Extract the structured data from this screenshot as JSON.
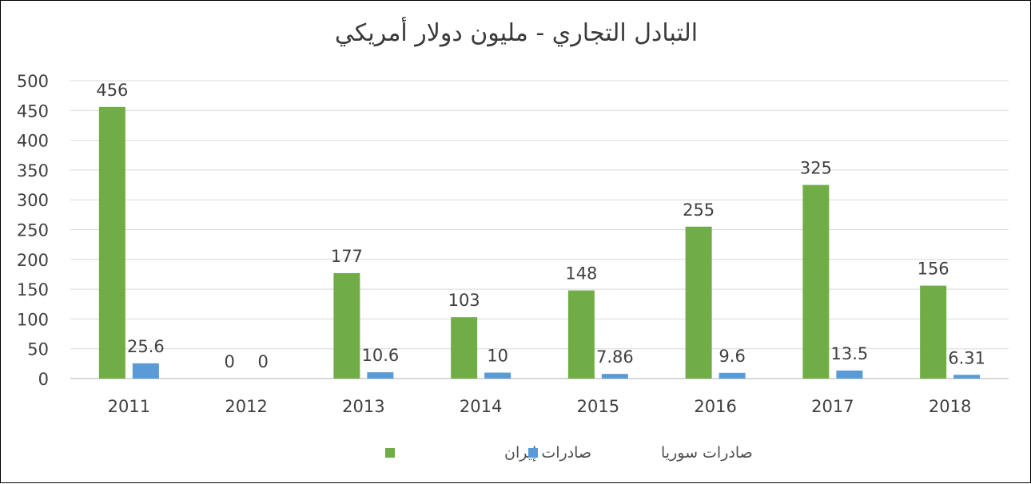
{
  "chart_data": {
    "type": "bar",
    "title": "التبادل التجاري - مليون دولار أمريكي",
    "categories": [
      "2011",
      "2012",
      "2013",
      "2014",
      "2015",
      "2016",
      "2017",
      "2018"
    ],
    "series": [
      {
        "name": "صادرات إيران",
        "color": "#70ad47",
        "values": [
          456,
          0,
          177,
          103,
          148,
          255,
          325,
          156
        ],
        "labels": [
          "456",
          "0",
          "177",
          "103",
          "148",
          "255",
          "325",
          "156"
        ]
      },
      {
        "name": "صادرات سوريا",
        "color": "#5b9bd5",
        "values": [
          25.6,
          0,
          10.6,
          10,
          7.86,
          9.6,
          13.5,
          6.31
        ],
        "labels": [
          "25.6",
          "0",
          "10.6",
          "10",
          "7.86",
          "9.6",
          "13.5",
          "6.31"
        ]
      }
    ],
    "ylim": [
      0,
      500
    ],
    "yticks": [
      0,
      50,
      100,
      150,
      200,
      250,
      300,
      350,
      400,
      450,
      500
    ],
    "grid": true,
    "legend_position": "bottom"
  }
}
